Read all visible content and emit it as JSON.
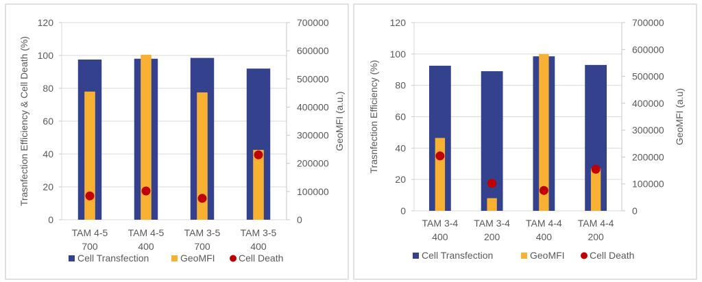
{
  "colors": {
    "transfection": "#34418C",
    "geomfi": "#F8B133",
    "death": "#C00000",
    "grid": "#D9D9D9",
    "axis": "#BFC8CF",
    "border": "#D6D6D6"
  },
  "chart_data": [
    {
      "type": "bar",
      "categories": [
        [
          "TAM 4-5",
          "700"
        ],
        [
          "TAM 4-5",
          "400"
        ],
        [
          "TAM 3-5",
          "700"
        ],
        [
          "TAM 3-5",
          "400"
        ]
      ],
      "ylabel": "Trasnfection Efficiency & Cell Death (%)",
      "y2label": "GeoMFI (a.u.)",
      "ylim": [
        0,
        120
      ],
      "yticks": [
        "0",
        "20",
        "40",
        "60",
        "80",
        "100",
        "120"
      ],
      "y2lim": [
        0,
        700000
      ],
      "y2ticks": [
        "0",
        "100000",
        "200000",
        "300000",
        "400000",
        "500000",
        "600000",
        "700000"
      ],
      "grid": true,
      "legend_position": "bottom",
      "series": [
        {
          "name": "Cell Transfection",
          "kind": "bar",
          "axis": "left",
          "values": [
            97.5,
            98,
            98.5,
            92
          ]
        },
        {
          "name": "GeoMFI",
          "kind": "bar",
          "axis": "right",
          "values": [
            455000,
            586000,
            452000,
            248000
          ]
        },
        {
          "name": "Cell Death",
          "kind": "marker",
          "axis": "left",
          "values": [
            14.5,
            17.5,
            13,
            39.5
          ]
        }
      ]
    },
    {
      "type": "bar",
      "categories": [
        [
          "TAM 3-4",
          "400"
        ],
        [
          "TAM 3-4",
          "200"
        ],
        [
          "TAM 4-4",
          "400"
        ],
        [
          "TAM 4-4",
          "200"
        ]
      ],
      "ylabel": "Trasnfection Efficiency (%)",
      "y2label": "GeoMFI (a.u)",
      "ylim": [
        0,
        120
      ],
      "yticks": [
        "0",
        "20",
        "40",
        "60",
        "80",
        "100",
        "120"
      ],
      "y2lim": [
        0,
        700000
      ],
      "y2ticks": [
        "0",
        "100000",
        "200000",
        "300000",
        "400000",
        "500000",
        "600000",
        "700000"
      ],
      "grid": true,
      "legend_position": "bottom",
      "series": [
        {
          "name": "Cell Transfection",
          "kind": "bar",
          "axis": "left",
          "values": [
            92.5,
            89,
            98.5,
            93
          ]
        },
        {
          "name": "GeoMFI",
          "kind": "bar",
          "axis": "right",
          "values": [
            271000,
            47000,
            583000,
            157000
          ]
        },
        {
          "name": "Cell Death",
          "kind": "marker",
          "axis": "left",
          "values": [
            35,
            17.5,
            13,
            26.5
          ]
        }
      ]
    }
  ]
}
